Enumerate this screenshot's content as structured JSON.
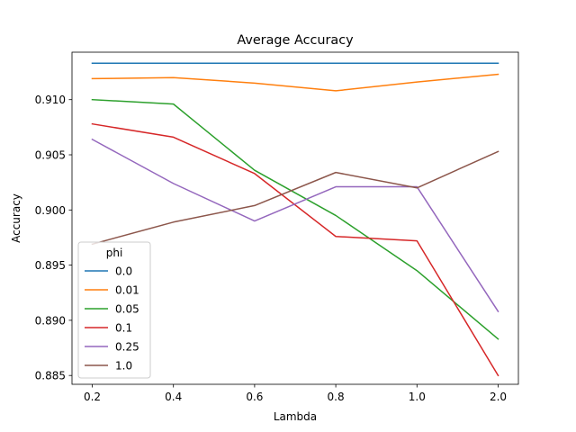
{
  "chart_data": {
    "type": "line",
    "title": "Average Accuracy",
    "xlabel": "Lambda",
    "ylabel": "Accuracy",
    "x_categories": [
      "0.2",
      "0.4",
      "0.6",
      "0.8",
      "1.0",
      "2.0"
    ],
    "y_ticks": [
      "0.885",
      "0.890",
      "0.895",
      "0.900",
      "0.905",
      "0.910"
    ],
    "ylim": [
      0.8842,
      0.9143
    ],
    "grid": false,
    "legend": {
      "title": "phi",
      "placement": "lower-left"
    },
    "series": [
      {
        "name": "0.0",
        "color": "#1f77b4",
        "values": [
          0.9133,
          0.9133,
          0.9133,
          0.9133,
          0.9133,
          0.9133
        ]
      },
      {
        "name": "0.01",
        "color": "#ff7f0e",
        "values": [
          0.9119,
          0.912,
          0.9115,
          0.9108,
          0.9116,
          0.9123
        ]
      },
      {
        "name": "0.05",
        "color": "#2ca02c",
        "values": [
          0.91,
          0.9096,
          0.9036,
          0.8995,
          0.8945,
          0.8883
        ]
      },
      {
        "name": "0.1",
        "color": "#d62728",
        "values": [
          0.9078,
          0.9066,
          0.9033,
          0.8976,
          0.8972,
          0.885
        ]
      },
      {
        "name": "0.25",
        "color": "#9467bd",
        "values": [
          0.9064,
          0.9024,
          0.899,
          0.9021,
          0.9021,
          0.8908
        ]
      },
      {
        "name": "1.0",
        "color": "#8c564b",
        "values": [
          0.8969,
          0.8989,
          0.9004,
          0.9034,
          0.902,
          0.9053
        ]
      }
    ]
  }
}
